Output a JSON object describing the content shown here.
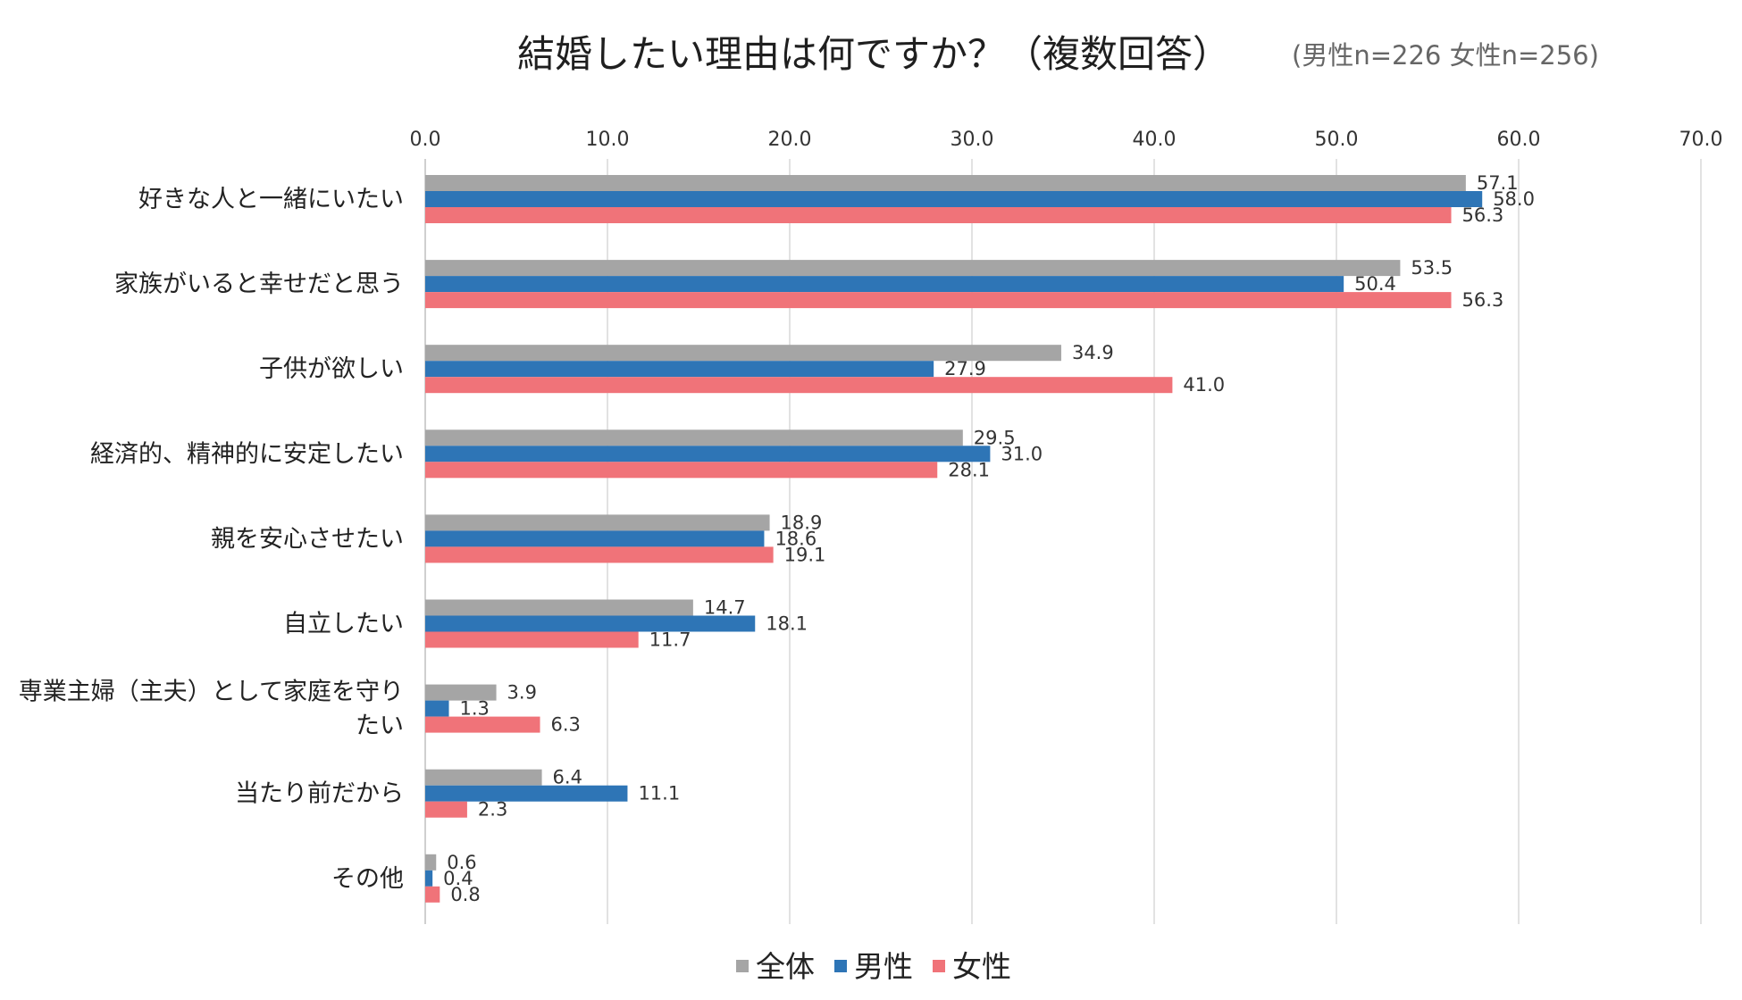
{
  "chart_data": {
    "type": "bar",
    "orientation": "horizontal",
    "title": "結婚したい理由は何ですか？（複数回答）",
    "subtitle": "(男性n=226 女性n=256)",
    "xlabel": "",
    "ylabel": "",
    "xlim": [
      0,
      70
    ],
    "ticks": [
      "0.0",
      "10.0",
      "20.0",
      "30.0",
      "40.0",
      "50.0",
      "60.0",
      "70.0"
    ],
    "tick_values": [
      0,
      10,
      20,
      30,
      40,
      50,
      60,
      70
    ],
    "grid": true,
    "legend_position": "bottom",
    "categories": [
      [
        "好きな人と一緒にいたい"
      ],
      [
        "家族がいると幸せだと思う"
      ],
      [
        "子供が欲しい"
      ],
      [
        "経済的、精神的に安定したい"
      ],
      [
        "親を安心させたい"
      ],
      [
        "自立したい"
      ],
      [
        "専業主婦（主夫）として家庭を守り",
        "たい"
      ],
      [
        "当たり前だから"
      ],
      [
        "その他"
      ]
    ],
    "series": [
      {
        "name": "全体",
        "color": "#a5a5a5",
        "values": [
          57.1,
          53.5,
          34.9,
          29.5,
          18.9,
          14.7,
          3.9,
          6.4,
          0.6
        ]
      },
      {
        "name": "男性",
        "color": "#2e75b6",
        "values": [
          58.0,
          50.4,
          27.9,
          31.0,
          18.6,
          18.1,
          1.3,
          11.1,
          0.4
        ]
      },
      {
        "name": "女性",
        "color": "#f07379",
        "values": [
          56.3,
          56.3,
          41.0,
          28.1,
          19.1,
          11.7,
          6.3,
          2.3,
          0.8
        ]
      }
    ]
  }
}
